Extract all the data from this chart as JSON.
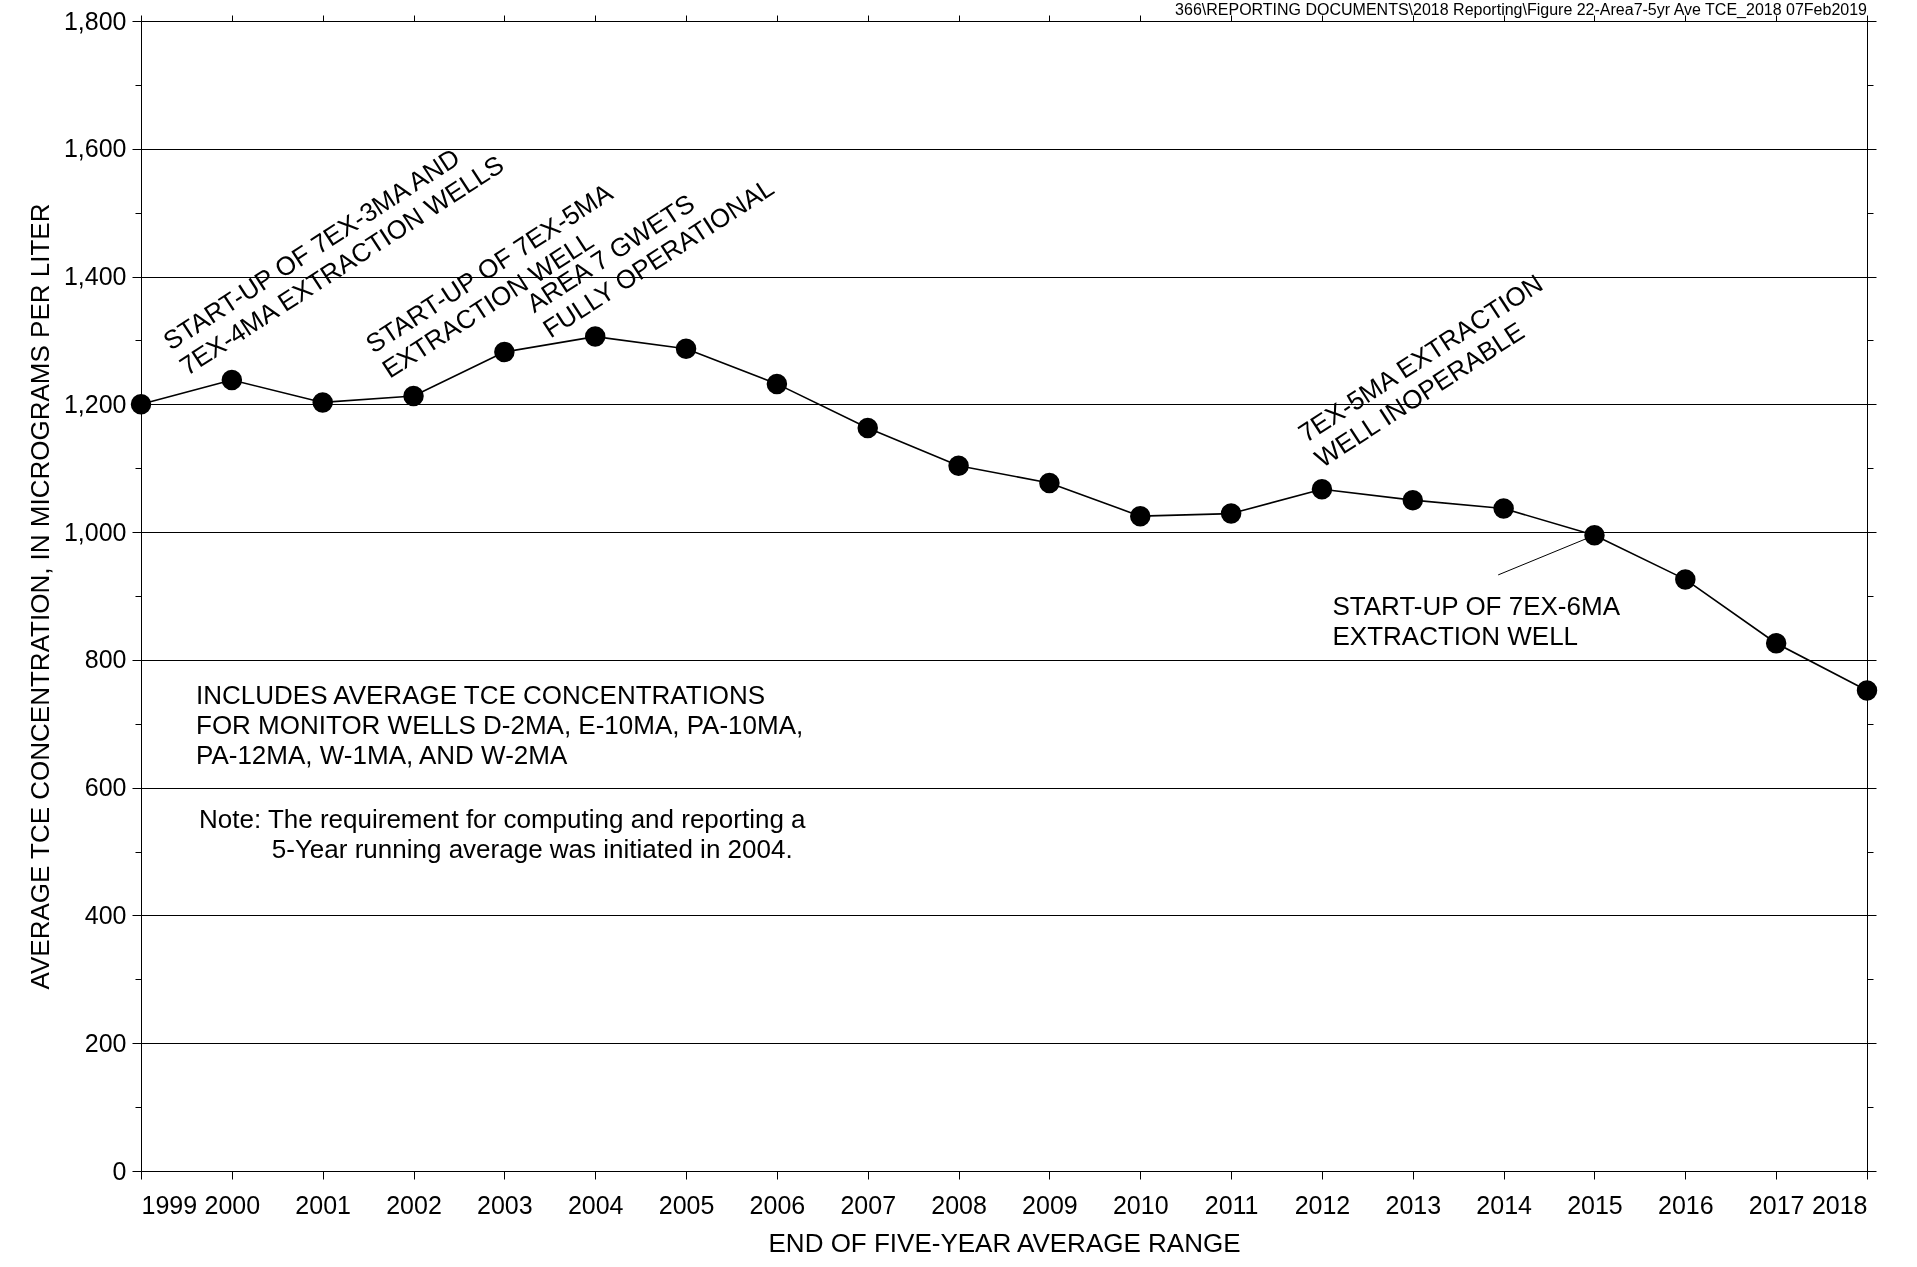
{
  "chart_data": {
    "type": "line",
    "xlabel": "END OF FIVE-YEAR AVERAGE RANGE",
    "ylabel": "AVERAGE TCE CONCENTRATION, IN MICROGRAMS PER LITER",
    "x": [
      1999,
      2000,
      2001,
      2002,
      2003,
      2004,
      2005,
      2006,
      2007,
      2008,
      2009,
      2010,
      2011,
      2012,
      2013,
      2014,
      2015,
      2016,
      2017,
      2018
    ],
    "series": [
      {
        "color": "#000000",
        "values": [
          1200,
          1238,
          1203,
          1213,
          1282,
          1306,
          1287,
          1232,
          1163,
          1104,
          1077,
          1025,
          1029,
          1067,
          1050,
          1037,
          995,
          926,
          826,
          752
        ]
      }
    ],
    "xlim": [
      1999,
      2018
    ],
    "xticks": [
      1999,
      2000,
      2001,
      2002,
      2003,
      2004,
      2005,
      2006,
      2007,
      2008,
      2009,
      2010,
      2011,
      2012,
      2013,
      2014,
      2015,
      2016,
      2017,
      2018
    ],
    "ylim": [
      0,
      1800
    ],
    "yticks": [
      0,
      {
        "value": 100,
        "label": null
      },
      200,
      {
        "value": 300,
        "label": null
      },
      400,
      {
        "value": 500,
        "label": null
      },
      600,
      {
        "value": 700,
        "label": null
      },
      800,
      {
        "value": 900,
        "label": null
      },
      {
        "value": 1000,
        "label": "1,000"
      },
      {
        "value": 1100,
        "label": null
      },
      {
        "value": 1200,
        "label": "1,200"
      },
      {
        "value": 1300,
        "label": null
      },
      {
        "value": 1400,
        "label": "1,400"
      },
      {
        "value": 1500,
        "label": null
      },
      {
        "value": 1600,
        "label": "1,600"
      },
      {
        "value": 1700,
        "label": null
      },
      {
        "value": 1800,
        "label": "1,800"
      }
    ],
    "grid": "y",
    "marker": "circle",
    "line_style": "solid",
    "annotations": [
      {
        "text": "START-UP OF 7EX-3MA AND\n7EX-4MA EXTRACTION WELLS",
        "x": 2000,
        "y": 1238
      },
      {
        "text": "START-UP OF 7EX-5MA\nEXTRACTION WELL",
        "x": 2003,
        "y": 1282
      },
      {
        "text": "AREA 7 GWETS\nFULLY OPERATIONAL",
        "x": 2004,
        "y": 1306
      },
      {
        "text": "7EX-5MA EXTRACTION\nWELL INOPERABLE",
        "x": 2012,
        "y": 1067
      },
      {
        "text": "START-UP OF 7EX-6MA\nEXTRACTION WELL",
        "x": 2015,
        "y": 995
      },
      "INCLUDES AVERAGE TCE CONCENTRATIONS\nFOR MONITOR WELLS D-2MA, E-10MA, PA-10MA,\nPA-12MA, W-1MA, AND W-2MA",
      "Note: The requirement for computing and reporting a\n          5-Year running average was initiated in 2004.",
      "366\\REPORTING DOCUMENTS\\2018 Reporting\\Figure 22-Area7-5yr Ave TCE_2018 07Feb2019"
    ]
  }
}
